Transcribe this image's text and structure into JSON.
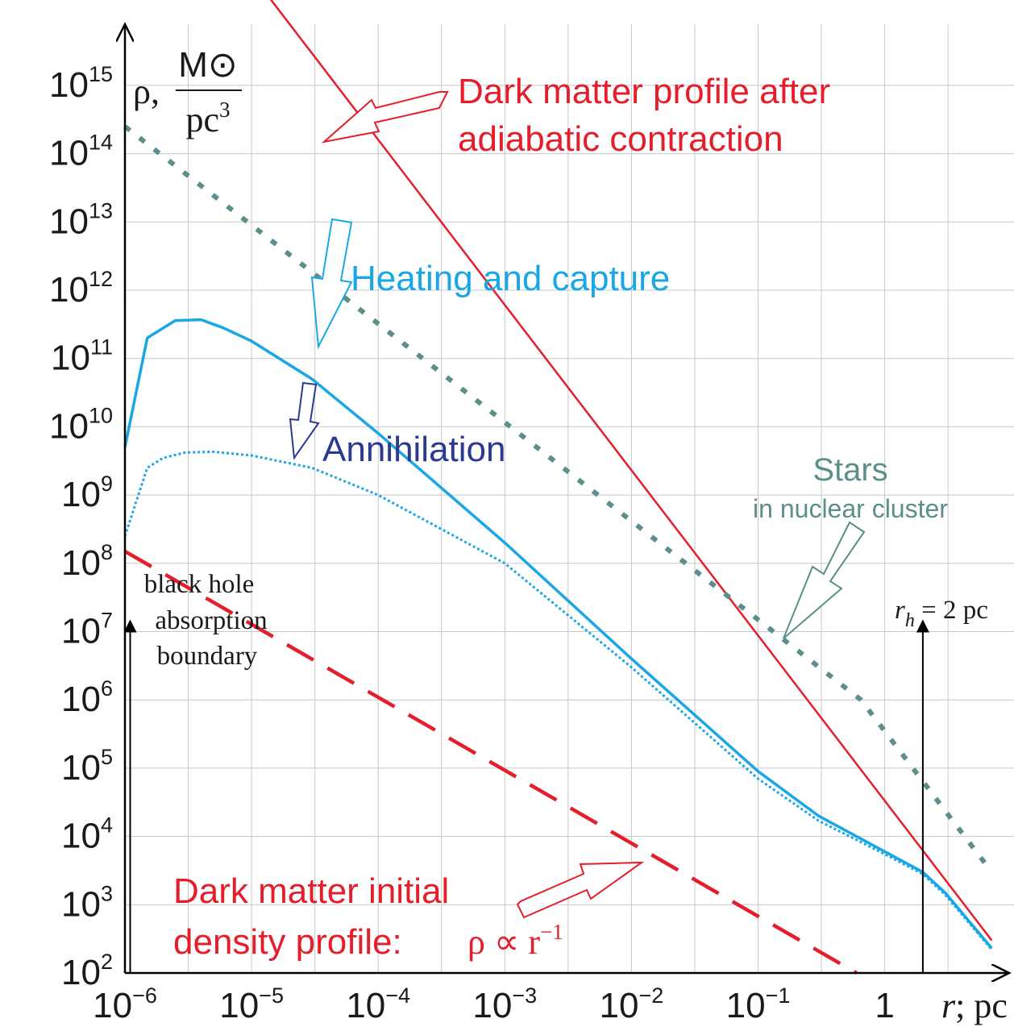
{
  "chart_data": {
    "type": "line",
    "x_scale": "log",
    "y_scale": "log",
    "xlim": [
      1e-06,
      7
    ],
    "ylim": [
      100,
      1e+18
    ],
    "grid": true,
    "x_ticks": [
      {
        "value": 1e-06,
        "base": "10",
        "exp": "−6"
      },
      {
        "value": 1e-05,
        "base": "10",
        "exp": "−5"
      },
      {
        "value": 0.0001,
        "base": "10",
        "exp": "−4"
      },
      {
        "value": 0.001,
        "base": "10",
        "exp": "−3"
      },
      {
        "value": 0.01,
        "base": "10",
        "exp": "−2"
      },
      {
        "value": 0.1,
        "base": "10",
        "exp": "−1"
      },
      {
        "value": 1,
        "base": "1",
        "exp": ""
      }
    ],
    "y_ticks": [
      {
        "value": 100.0,
        "base": "10",
        "exp": "2"
      },
      {
        "value": 1000.0,
        "base": "10",
        "exp": "3"
      },
      {
        "value": 10000.0,
        "base": "10",
        "exp": "4"
      },
      {
        "value": 100000.0,
        "base": "10",
        "exp": "5"
      },
      {
        "value": 1000000.0,
        "base": "10",
        "exp": "6"
      },
      {
        "value": 10000000.0,
        "base": "10",
        "exp": "7"
      },
      {
        "value": 100000000.0,
        "base": "10",
        "exp": "8"
      },
      {
        "value": 1000000000.0,
        "base": "10",
        "exp": "9"
      },
      {
        "value": 10000000000.0,
        "base": "10",
        "exp": "10"
      },
      {
        "value": 100000000000.0,
        "base": "10",
        "exp": "11"
      },
      {
        "value": 1000000000000.0,
        "base": "10",
        "exp": "12"
      },
      {
        "value": 10000000000000.0,
        "base": "10",
        "exp": "13"
      },
      {
        "value": 100000000000000.0,
        "base": "10",
        "exp": "14"
      },
      {
        "value": 1000000000000000.0,
        "base": "10",
        "exp": "15"
      }
    ],
    "xlabel": {
      "var": "r",
      "rest": "; pc"
    },
    "ylabel": {
      "rho": "ρ,",
      "num": "M⊙",
      "den": "pc",
      "den_exp": "3"
    },
    "colors": {
      "dm_contracted": "#e41e2b",
      "dm_initial": "#e41e2b",
      "heating": "#1aa7e6",
      "annihilation": "#1aa7e6",
      "stars": "#5c8e8c",
      "heating_arrow": "#1aa7e6",
      "annihilation_arrow": "#2b3990"
    },
    "series": [
      {
        "key": "dm_contracted",
        "style": "solid",
        "x": [
          2.7e-06,
          7
        ],
        "y": [
          1e+18,
          300
        ]
      },
      {
        "key": "dm_initial",
        "style": "dashed",
        "x": [
          1e-06,
          0.6
        ],
        "y": [
          150000000.0,
          100
        ]
      },
      {
        "key": "stars",
        "style": "dotted",
        "x": [
          1e-06,
          0.65,
          7
        ],
        "y": [
          250000000000000.0,
          1000000.0,
          3000.0
        ]
      },
      {
        "key": "heating",
        "style": "solid",
        "x": [
          1e-06,
          1.5e-06,
          2.5e-06,
          4e-06,
          6e-06,
          1e-05,
          3e-05,
          0.0001,
          0.001,
          0.01,
          0.1,
          0.3,
          1,
          2,
          3,
          7
        ],
        "y": [
          5000000000.0,
          200000000000.0,
          360000000000.0,
          370000000000.0,
          280000000000.0,
          180000000000.0,
          50000000000.0,
          8000000000.0,
          200000000.0,
          4000000.0,
          90000.0,
          20000.0,
          6000.0,
          3000.0,
          1500.0,
          230
        ]
      },
      {
        "key": "annihilation",
        "style": "dotted",
        "x": [
          1e-06,
          1.5e-06,
          2e-06,
          3e-06,
          5e-06,
          1e-05,
          3e-05,
          0.0001,
          0.001,
          0.01,
          0.1,
          0.3,
          1,
          2,
          3,
          7
        ],
        "y": [
          250000000.0,
          2500000000.0,
          3500000000.0,
          4200000000.0,
          4300000000.0,
          3800000000.0,
          2500000000.0,
          1000000000.0,
          100000000.0,
          3000000.0,
          70000.0,
          17000.0,
          5500.0,
          2800.0,
          1400.0,
          220
        ]
      }
    ],
    "vlines": [
      {
        "key": "bh_boundary",
        "x": 1.1e-06,
        "y_top": 10000000.0
      },
      {
        "key": "r_h",
        "x": 2,
        "y_top": 10000000.0
      }
    ],
    "annotations": {
      "dm_contracted": {
        "lines": [
          "Dark matter profile after",
          "adiabatic contraction"
        ]
      },
      "dm_initial": {
        "lines": [
          "Dark matter initial",
          "density profile:"
        ],
        "formula": "ρ ∝ r",
        "formula_exp": "−1"
      },
      "heating": {
        "text": "Heating and capture"
      },
      "annihilation": {
        "text": "Annihilation"
      },
      "stars": {
        "text": "Stars",
        "sub": "in nuclear cluster"
      },
      "bh": {
        "lines": [
          "black hole",
          "absorption",
          "boundary"
        ]
      },
      "rh": {
        "var": "r",
        "sub": "h",
        "rest": " = 2 pc"
      }
    }
  }
}
